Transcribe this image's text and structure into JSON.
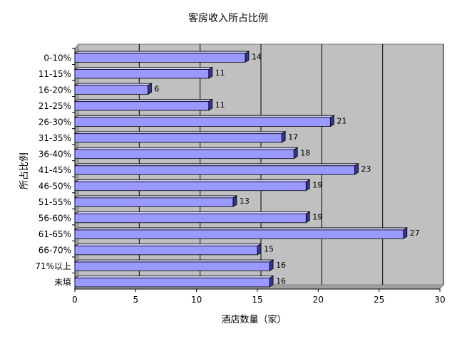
{
  "chart_data": {
    "type": "bar",
    "orientation": "horizontal",
    "title": "客房收入所占比例",
    "xlabel": "酒店数量（家）",
    "ylabel": "所占比例",
    "categories": [
      "0-10%",
      "11-15%",
      "16-20%",
      "21-25%",
      "26-30%",
      "31-35%",
      "36-40%",
      "41-45%",
      "46-50%",
      "51-55%",
      "56-60%",
      "61-65%",
      "66-70%",
      "71%以上",
      "未填"
    ],
    "values": [
      14,
      11,
      6,
      11,
      21,
      17,
      18,
      23,
      19,
      13,
      19,
      27,
      15,
      16,
      16
    ],
    "xlim": [
      0,
      30
    ],
    "xticks": [
      0,
      5,
      10,
      15,
      20,
      25,
      30
    ],
    "grid": "vertical",
    "data_labels": true,
    "style": "3d"
  },
  "colors": {
    "plot_background": "#c0c0c0",
    "bar_face": "#9999ff",
    "bar_top": "#ccccff",
    "bar_side": "#333399",
    "gridline": "#000000"
  }
}
